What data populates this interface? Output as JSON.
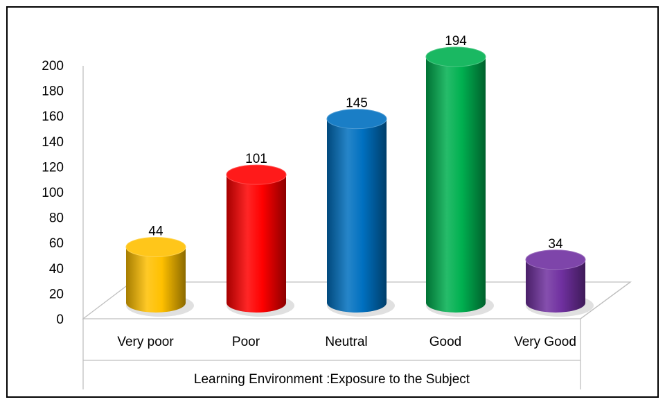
{
  "chart_data": {
    "type": "bar",
    "x_label": "Learning Environment :Exposure to the Subject",
    "categories": [
      "Very poor",
      "Poor",
      "Neutral",
      "Good",
      "Very Good"
    ],
    "values": [
      44,
      101,
      145,
      194,
      34
    ],
    "colors": [
      "#ffc000",
      "#ff0000",
      "#0070c0",
      "#00b050",
      "#7030a0"
    ],
    "ylim": [
      0,
      200
    ],
    "yticks": [
      0,
      20,
      40,
      60,
      80,
      100,
      120,
      140,
      160,
      180,
      200
    ],
    "grid": false
  }
}
